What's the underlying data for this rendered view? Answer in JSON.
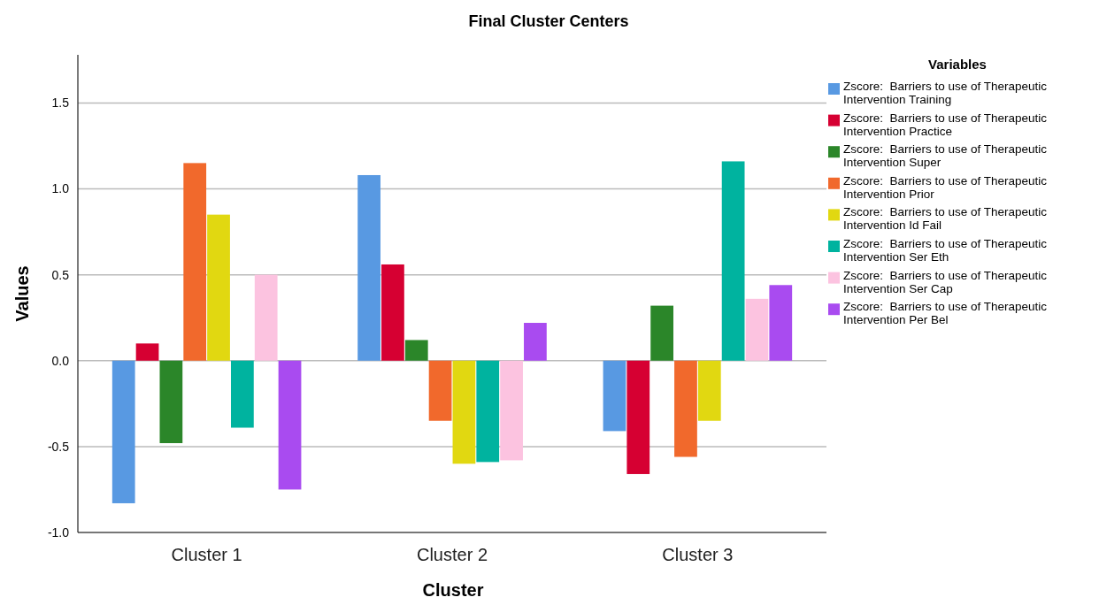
{
  "chart_data": {
    "type": "bar",
    "title": "Final Cluster Centers",
    "xlabel": "Cluster",
    "ylabel": "Values",
    "legend_title": "Variables",
    "categories": [
      "Cluster 1",
      "Cluster 2",
      "Cluster 3"
    ],
    "series": [
      {
        "name": "Zscore:  Barriers to use of Therapeutic Intervention Training",
        "color": "#5899e2",
        "values": [
          -0.83,
          1.08,
          -0.41
        ]
      },
      {
        "name": "Zscore:  Barriers to use of Therapeutic Intervention Practice",
        "color": "#d60032",
        "values": [
          0.1,
          0.56,
          -0.66
        ]
      },
      {
        "name": "Zscore:  Barriers to use of Therapeutic Intervention Super",
        "color": "#2b8629",
        "values": [
          -0.48,
          0.12,
          0.32
        ]
      },
      {
        "name": "Zscore:  Barriers to use of Therapeutic Intervention Prior",
        "color": "#f1692c",
        "values": [
          1.15,
          -0.35,
          -0.56
        ]
      },
      {
        "name": "Zscore:  Barriers to use of Therapeutic Intervention Id Fail",
        "color": "#e1d811",
        "values": [
          0.85,
          -0.6,
          -0.35
        ]
      },
      {
        "name": "Zscore:  Barriers to use of Therapeutic Intervention Ser Eth",
        "color": "#00b39f",
        "values": [
          -0.39,
          -0.59,
          1.16
        ]
      },
      {
        "name": "Zscore:  Barriers to use of Therapeutic Intervention Ser Cap",
        "color": "#fcc3e0",
        "values": [
          0.5,
          -0.58,
          0.36
        ]
      },
      {
        "name": "Zscore:  Barriers to use of Therapeutic Intervention Per Bel",
        "color": "#a94bf0",
        "values": [
          -0.75,
          0.22,
          0.44
        ]
      }
    ],
    "ylim": [
      -1.0,
      1.78
    ],
    "yticks": [
      {
        "value": -1.0,
        "label": "-1.0"
      },
      {
        "value": -0.5,
        "label": "-0.5"
      },
      {
        "value": 0,
        "label": "0.0"
      },
      {
        "value": 0.5,
        "label": "0.5"
      },
      {
        "value": 1.0,
        "label": "1.0"
      },
      {
        "value": 1.5,
        "label": "1.5"
      }
    ],
    "grid": "y",
    "legend": "right"
  }
}
